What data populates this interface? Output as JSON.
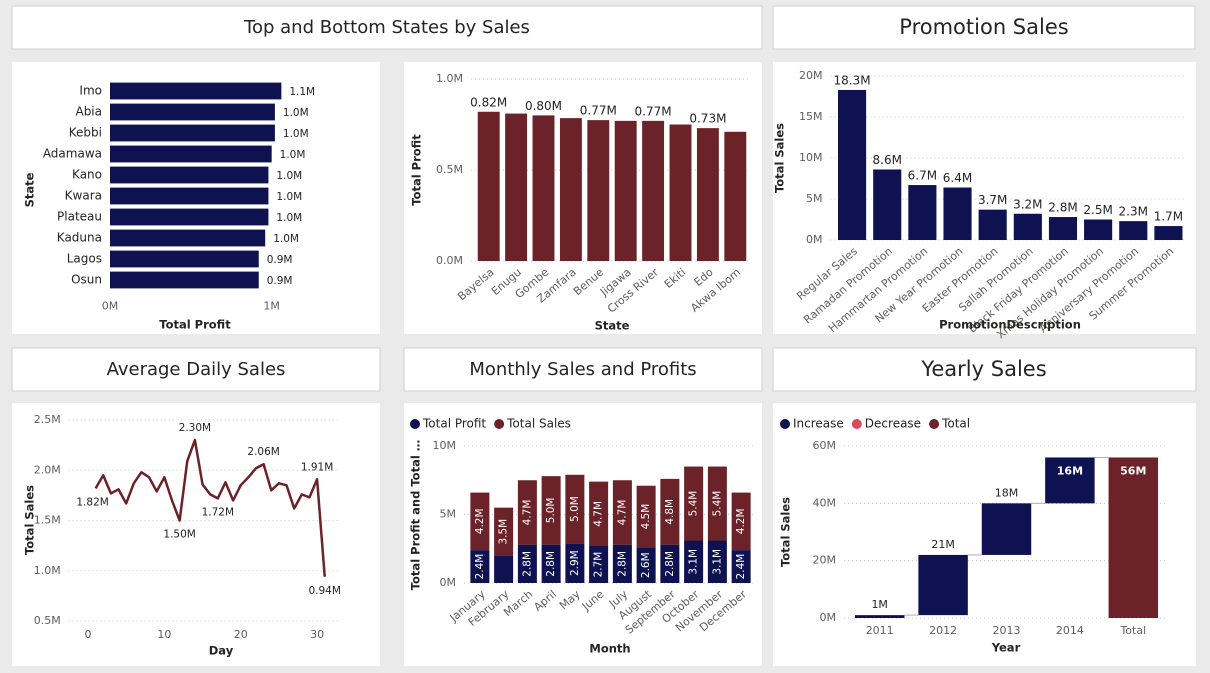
{
  "panel_titles": [
    "Top and Bottom States by Sales",
    "Promotion Sales",
    "Average Daily Sales",
    "Monthly Sales and Profits",
    "Yearly Sales"
  ],
  "chart_data": [
    {
      "type": "bar",
      "orientation": "horizontal",
      "categories": [
        "Imo",
        "Abia",
        "Kebbi",
        "Adamawa",
        "Kano",
        "Kwara",
        "Plateau",
        "Kaduna",
        "Lagos",
        "Osun"
      ],
      "values": [
        1.06,
        1.02,
        1.02,
        1.0,
        0.98,
        0.98,
        0.98,
        0.96,
        0.92,
        0.92
      ],
      "value_labels": [
        "1.1M",
        "1.0M",
        "1.0M",
        "1.0M",
        "1.0M",
        "1.0M",
        "1.0M",
        "1.0M",
        "0.9M",
        "0.9M"
      ],
      "color": "#0e1250",
      "xlim": [
        0,
        1.2
      ],
      "xticks": [
        {
          "value": 0,
          "label": "0M"
        },
        {
          "value": 1,
          "label": "1M"
        }
      ],
      "xlabel": "Total Profit",
      "ylabel": "State",
      "grid": false
    },
    {
      "type": "bar",
      "categories": [
        "Bayelsa",
        "Enugu",
        "Gombe",
        "Zamfara",
        "Benue",
        "Jigawa",
        "Cross River",
        "Ekiti",
        "Edo",
        "Akwa Ibom"
      ],
      "values": [
        0.82,
        0.81,
        0.8,
        0.785,
        0.774,
        0.77,
        0.77,
        0.75,
        0.73,
        0.71
      ],
      "value_labels": [
        "0.82M",
        null,
        "0.80M",
        null,
        "0.77M",
        null,
        "0.77M",
        null,
        "0.73M",
        null
      ],
      "color": "#6b2228",
      "ylim": [
        0,
        1.0
      ],
      "yticks": [
        {
          "value": 0,
          "label": "0.0M"
        },
        {
          "value": 0.5,
          "label": "0.5M"
        },
        {
          "value": 1.0,
          "label": "1.0M"
        }
      ],
      "xlabel": "State",
      "ylabel": "Total Profit",
      "grid": true
    },
    {
      "type": "bar",
      "categories": [
        "Regular Sales",
        "Ramadan Promotion",
        "Hammartan Promotion",
        "New Year Promotion",
        "Easter Promotion",
        "Sallah Promotion",
        "Black Friday Promotion",
        "Xmas Holiday Promotion",
        "Anniversary Promotion",
        "Summer Promotion"
      ],
      "values": [
        18.3,
        8.6,
        6.7,
        6.4,
        3.7,
        3.2,
        2.8,
        2.5,
        2.3,
        1.7
      ],
      "value_labels": [
        "18.3M",
        "8.6M",
        "6.7M",
        "6.4M",
        "3.7M",
        "3.2M",
        "2.8M",
        "2.5M",
        "2.3M",
        "1.7M"
      ],
      "color": "#0e1250",
      "ylim": [
        0,
        20
      ],
      "yticks": [
        {
          "value": 0,
          "label": "0M"
        },
        {
          "value": 5,
          "label": "5M"
        },
        {
          "value": 10,
          "label": "10M"
        },
        {
          "value": 15,
          "label": "15M"
        },
        {
          "value": 20,
          "label": "20M"
        }
      ],
      "xlabel": "PromotionDescription",
      "ylabel": "Total Sales",
      "grid": true
    },
    {
      "type": "line",
      "x": [
        1,
        2,
        3,
        4,
        5,
        6,
        7,
        8,
        9,
        10,
        11,
        12,
        13,
        14,
        15,
        16,
        17,
        18,
        19,
        20,
        21,
        22,
        23,
        24,
        25,
        26,
        27,
        28,
        29,
        30,
        31
      ],
      "values": [
        1.82,
        1.95,
        1.77,
        1.81,
        1.67,
        1.87,
        1.98,
        1.93,
        1.79,
        1.93,
        1.7,
        1.5,
        2.09,
        2.3,
        1.86,
        1.76,
        1.72,
        1.88,
        1.7,
        1.85,
        1.93,
        2.02,
        2.06,
        1.8,
        1.87,
        1.85,
        1.62,
        1.76,
        1.73,
        1.91,
        0.94
      ],
      "value_labels": [
        "1.82M",
        null,
        null,
        null,
        null,
        null,
        null,
        null,
        null,
        null,
        null,
        "1.50M",
        null,
        "2.30M",
        null,
        null,
        "1.72M",
        null,
        null,
        null,
        null,
        null,
        "2.06M",
        null,
        null,
        null,
        null,
        null,
        null,
        "1.91M",
        "0.94M"
      ],
      "color": "#6b2228",
      "xlim": [
        -2,
        33
      ],
      "xticks": [
        0,
        10,
        20,
        30
      ],
      "ylim": [
        0.5,
        2.5
      ],
      "yticks": [
        {
          "value": 0.5,
          "label": "0.5M"
        },
        {
          "value": 1.0,
          "label": "1.0M"
        },
        {
          "value": 1.5,
          "label": "1.5M"
        },
        {
          "value": 2.0,
          "label": "2.0M"
        },
        {
          "value": 2.5,
          "label": "2.5M"
        }
      ],
      "xlabel": "Day",
      "ylabel": "Total Sales",
      "grid": true
    },
    {
      "type": "bar",
      "stacked": true,
      "categories": [
        "January",
        "February",
        "March",
        "April",
        "May",
        "June",
        "July",
        "August",
        "September",
        "October",
        "November",
        "December"
      ],
      "series": [
        {
          "name": "Total Profit",
          "color": "#0e1250",
          "values": [
            2.4,
            2.0,
            2.8,
            2.8,
            2.9,
            2.7,
            2.8,
            2.6,
            2.8,
            3.1,
            3.1,
            2.4
          ],
          "value_labels": [
            "2.4M",
            null,
            "2.8M",
            "2.8M",
            "2.9M",
            "2.7M",
            "2.8M",
            "2.6M",
            "2.8M",
            "3.1M",
            "3.1M",
            "2.4M"
          ]
        },
        {
          "name": "Total Sales",
          "color": "#6b2228",
          "values": [
            4.2,
            3.5,
            4.7,
            5.0,
            5.0,
            4.7,
            4.7,
            4.5,
            4.8,
            5.4,
            5.4,
            4.2
          ],
          "value_labels": [
            "4.2M",
            "3.5M",
            "4.7M",
            "5.0M",
            "5.0M",
            "4.7M",
            "4.7M",
            "4.5M",
            "4.8M",
            "5.4M",
            "5.4M",
            "4.2M"
          ]
        }
      ],
      "ylim": [
        0,
        10
      ],
      "yticks": [
        {
          "value": 0,
          "label": "0M"
        },
        {
          "value": 5,
          "label": "5M"
        },
        {
          "value": 10,
          "label": "10M"
        }
      ],
      "xlabel": "Month",
      "ylabel": "Total Profit and Total …",
      "grid": true
    },
    {
      "type": "waterfall",
      "categories": [
        "2011",
        "2012",
        "2013",
        "2014",
        "Total"
      ],
      "values": [
        1,
        21,
        18,
        16,
        56
      ],
      "value_labels": [
        "1M",
        "21M",
        "18M",
        "16M",
        "56M"
      ],
      "legend": [
        {
          "name": "Increase",
          "color": "#0e1250"
        },
        {
          "name": "Decrease",
          "color": "#e0475a"
        },
        {
          "name": "Total",
          "color": "#6b2228"
        }
      ],
      "ylim": [
        0,
        60
      ],
      "yticks": [
        {
          "value": 0,
          "label": "0M"
        },
        {
          "value": 20,
          "label": "20M"
        },
        {
          "value": 40,
          "label": "40M"
        },
        {
          "value": 60,
          "label": "60M"
        }
      ],
      "xlabel": "Year",
      "ylabel": "Total Sales",
      "grid": true
    }
  ]
}
